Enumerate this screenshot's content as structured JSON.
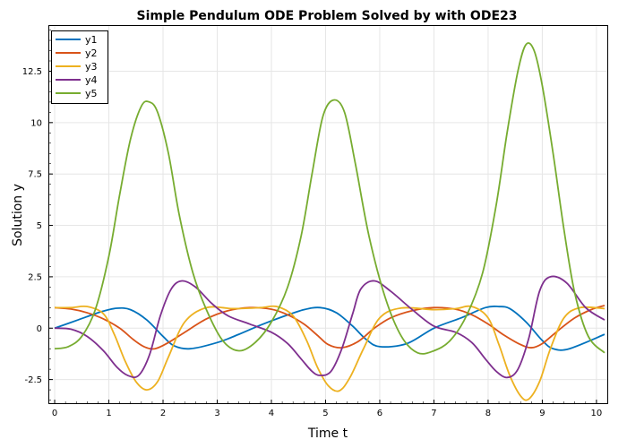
{
  "chart_data": {
    "type": "line",
    "title": "Simple Pendulum ODE Problem Solved by with ODE23",
    "xlabel": "Time t",
    "ylabel": "Solution y",
    "xlim": [
      -0.1,
      10.2
    ],
    "ylim": [
      -3.65,
      14.7
    ],
    "xticks": [
      0,
      1,
      2,
      3,
      4,
      5,
      6,
      7,
      8,
      9,
      10
    ],
    "xtick_labels": [
      "0",
      "1",
      "2",
      "3",
      "4",
      "5",
      "6",
      "7",
      "8",
      "9",
      "10"
    ],
    "yticks": [
      -2.5,
      0,
      2.5,
      5,
      7.5,
      10,
      12.5
    ],
    "ytick_labels": [
      "-2.5",
      "0",
      "2.5",
      "5",
      "7.5",
      "10",
      "12.5"
    ],
    "grid": true,
    "legend": "top-left",
    "series": [
      {
        "name": "y1",
        "color": "#0072BD",
        "x": [
          0,
          0.43,
          0.86,
          1.15,
          1.4,
          1.7,
          2.0,
          2.2,
          2.5,
          3.0,
          3.4,
          3.8,
          4.2,
          4.6,
          4.9,
          5.2,
          5.5,
          5.75,
          6.0,
          6.5,
          7.0,
          7.5,
          7.95,
          8.2,
          8.4,
          8.7,
          9.0,
          9.2,
          9.5,
          10.15
        ],
        "y": [
          0,
          0.4,
          0.8,
          0.97,
          0.9,
          0.4,
          -0.4,
          -0.85,
          -1.0,
          -0.7,
          -0.3,
          0.15,
          0.55,
          0.9,
          1.0,
          0.75,
          0.1,
          -0.55,
          -0.9,
          -0.75,
          0,
          0.5,
          1.0,
          1.05,
          0.95,
          0.3,
          -0.6,
          -1.0,
          -1.0,
          -0.3
        ]
      },
      {
        "name": "y2",
        "color": "#D95319",
        "x": [
          0,
          0.3,
          0.6,
          0.9,
          1.2,
          1.45,
          1.65,
          1.85,
          2.1,
          2.4,
          2.8,
          3.2,
          3.6,
          4.0,
          4.3,
          4.6,
          4.85,
          5.05,
          5.3,
          5.6,
          5.9,
          6.2,
          6.6,
          7.0,
          7.4,
          7.7,
          8.0,
          8.3,
          8.6,
          8.8,
          9.0,
          9.3,
          9.6,
          9.9,
          10.15
        ],
        "y": [
          1,
          0.93,
          0.75,
          0.45,
          0,
          -0.55,
          -0.9,
          -1.0,
          -0.7,
          -0.2,
          0.45,
          0.85,
          1.0,
          0.92,
          0.65,
          0.2,
          -0.35,
          -0.8,
          -0.95,
          -0.65,
          0,
          0.5,
          0.85,
          1.0,
          0.92,
          0.65,
          0.2,
          -0.35,
          -0.8,
          -0.95,
          -0.75,
          -0.1,
          0.5,
          0.9,
          1.1
        ]
      },
      {
        "name": "y3",
        "color": "#EDB120",
        "x": [
          0,
          0.3,
          0.6,
          0.9,
          1.1,
          1.3,
          1.5,
          1.7,
          1.9,
          2.1,
          2.4,
          2.8,
          3.3,
          3.8,
          4.1,
          4.4,
          4.65,
          4.85,
          5.05,
          5.25,
          5.45,
          5.7,
          6.0,
          6.4,
          7.0,
          7.4,
          7.7,
          8.0,
          8.2,
          8.4,
          8.6,
          8.75,
          8.95,
          9.15,
          9.4,
          9.7,
          10.15
        ],
        "y": [
          1,
          1.0,
          1.05,
          0.7,
          -0.3,
          -1.6,
          -2.6,
          -3.0,
          -2.6,
          -1.4,
          0.3,
          1.0,
          0.95,
          1.0,
          1.05,
          0.6,
          -0.6,
          -1.9,
          -2.8,
          -3.05,
          -2.4,
          -1.0,
          0.5,
          0.98,
          0.9,
          0.95,
          1.05,
          0.5,
          -0.8,
          -2.3,
          -3.3,
          -3.45,
          -2.6,
          -1.0,
          0.5,
          1.0,
          0.95
        ]
      },
      {
        "name": "y4",
        "color": "#7E2F8E",
        "x": [
          0,
          0.3,
          0.6,
          0.9,
          1.15,
          1.35,
          1.55,
          1.75,
          1.95,
          2.15,
          2.35,
          2.6,
          2.9,
          3.2,
          3.6,
          4.0,
          4.3,
          4.55,
          4.75,
          4.9,
          5.1,
          5.3,
          5.5,
          5.65,
          5.9,
          6.2,
          6.6,
          7.0,
          7.4,
          7.7,
          7.95,
          8.15,
          8.35,
          8.55,
          8.75,
          8.95,
          9.15,
          9.45,
          9.8,
          10.15
        ],
        "y": [
          0,
          -0.05,
          -0.4,
          -1.1,
          -1.9,
          -2.3,
          -2.3,
          -1.3,
          0.6,
          1.9,
          2.3,
          2.0,
          1.2,
          0.6,
          0.2,
          -0.2,
          -0.75,
          -1.5,
          -2.1,
          -2.3,
          -2.1,
          -1.0,
          0.7,
          1.9,
          2.3,
          1.8,
          0.9,
          0.1,
          -0.2,
          -0.7,
          -1.5,
          -2.1,
          -2.4,
          -2.0,
          -0.5,
          1.8,
          2.5,
          2.2,
          1.0,
          0.4
        ]
      },
      {
        "name": "y5",
        "color": "#77AC30",
        "x": [
          0,
          0.25,
          0.5,
          0.75,
          1.0,
          1.2,
          1.4,
          1.6,
          1.75,
          1.9,
          2.1,
          2.3,
          2.55,
          2.8,
          3.1,
          3.4,
          3.7,
          4.0,
          4.3,
          4.55,
          4.75,
          4.95,
          5.15,
          5.35,
          5.55,
          5.8,
          6.1,
          6.4,
          6.7,
          7.0,
          7.3,
          7.6,
          7.9,
          8.15,
          8.35,
          8.55,
          8.7,
          8.85,
          9.0,
          9.2,
          9.4,
          9.6,
          9.85,
          10.15
        ],
        "y": [
          -1,
          -0.9,
          -0.4,
          0.9,
          3.5,
          6.5,
          9.2,
          10.8,
          11.0,
          10.5,
          8.5,
          5.5,
          2.7,
          0.9,
          -0.6,
          -1.1,
          -0.7,
          0.3,
          2.0,
          4.5,
          7.5,
          10.3,
          11.1,
          10.5,
          8.0,
          4.5,
          1.5,
          -0.4,
          -1.2,
          -1.1,
          -0.6,
          0.6,
          2.7,
          6.0,
          9.5,
          12.5,
          13.8,
          13.5,
          11.8,
          8.5,
          4.8,
          1.7,
          -0.4,
          -1.2
        ]
      }
    ]
  }
}
